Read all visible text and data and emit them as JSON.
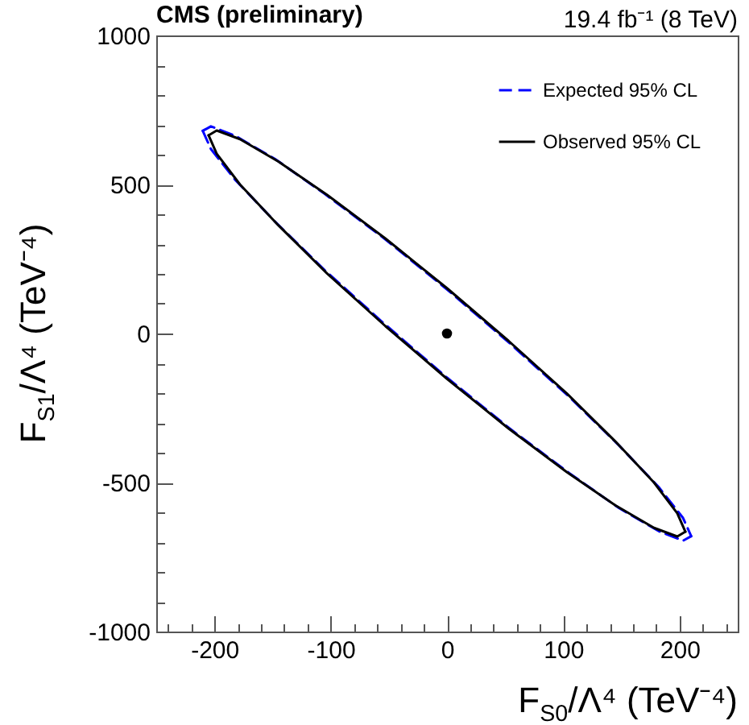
{
  "chart_data": {
    "type": "line",
    "title": "CMS (preliminary)",
    "subtitle": "19.4 fb⁻¹ (8 TeV)",
    "xlabel": "F$_{S0}$/Λ⁴ (TeV⁻⁴)",
    "ylabel": "F$_{S1}$/Λ⁴ (TeV⁻⁴)",
    "xlim": [
      -250,
      250
    ],
    "ylim": [
      -1000,
      1000
    ],
    "xticks": [
      {
        "value": -240,
        "label": null
      },
      {
        "value": -220,
        "label": null
      },
      -200,
      {
        "value": -180,
        "label": null
      },
      {
        "value": -160,
        "label": null
      },
      {
        "value": -140,
        "label": null
      },
      {
        "value": -120,
        "label": null
      },
      -100,
      {
        "value": -80,
        "label": null
      },
      {
        "value": -60,
        "label": null
      },
      {
        "value": -40,
        "label": null
      },
      {
        "value": -20,
        "label": null
      },
      0,
      {
        "value": 20,
        "label": null
      },
      {
        "value": 40,
        "label": null
      },
      {
        "value": 60,
        "label": null
      },
      {
        "value": 80,
        "label": null
      },
      100,
      {
        "value": 120,
        "label": null
      },
      {
        "value": 140,
        "label": null
      },
      {
        "value": 160,
        "label": null
      },
      {
        "value": 180,
        "label": null
      },
      200,
      {
        "value": 220,
        "label": null
      },
      {
        "value": 240,
        "label": null
      }
    ],
    "yticks": [
      -1000,
      {
        "value": -900,
        "label": null
      },
      {
        "value": -800,
        "label": null
      },
      {
        "value": -700,
        "label": null
      },
      {
        "value": -600,
        "label": null
      },
      -500,
      {
        "value": -400,
        "label": null
      },
      {
        "value": -300,
        "label": null
      },
      {
        "value": -200,
        "label": null
      },
      {
        "value": -100,
        "label": null
      },
      0,
      {
        "value": 100,
        "label": null
      },
      {
        "value": 200,
        "label": null
      },
      {
        "value": 300,
        "label": null
      },
      {
        "value": 400,
        "label": null
      },
      500,
      {
        "value": 600,
        "label": null
      },
      {
        "value": 700,
        "label": null
      },
      {
        "value": 800,
        "label": null
      },
      {
        "value": 900,
        "label": null
      },
      1000
    ],
    "legend": "top right",
    "series": [
      {
        "name": "Expected 95% CL",
        "color": "#0000ff",
        "line_style": "dashed",
        "x": [
          -210,
          -203,
          -182,
          -148,
          -105,
          -54,
          0,
          54,
          105,
          148,
          182,
          203,
          210
        ],
        "values": [
          680,
          695,
          663,
          586,
          468,
          319,
          148,
          -33,
          -212,
          -376,
          -515,
          -619,
          -680
        ]
      },
      {
        "color": "#0000ff",
        "line_style": "dashed",
        "x": [
          -210,
          -203,
          -182,
          -148,
          -105,
          -54,
          0,
          54,
          105,
          148,
          182,
          203,
          210
        ],
        "values": [
          680,
          619,
          515,
          376,
          212,
          33,
          -148,
          -319,
          -468,
          -586,
          -663,
          -695,
          -680
        ]
      },
      {
        "name": "Observed 95% CL",
        "color": "#000000",
        "line_style": "solid",
        "x": [
          -205,
          -198,
          -178,
          -145,
          -103,
          -53,
          0,
          53,
          103,
          145,
          178,
          198,
          205
        ],
        "values": [
          665,
          681,
          652,
          577,
          465,
          319,
          152,
          -25,
          -201,
          -363,
          -500,
          -603,
          -665
        ]
      },
      {
        "color": "#000000",
        "line_style": "solid",
        "x": [
          -205,
          -198,
          -178,
          -145,
          -103,
          -53,
          0,
          53,
          103,
          145,
          178,
          198,
          205
        ],
        "values": [
          665,
          603,
          500,
          363,
          201,
          25,
          -152,
          -319,
          -465,
          -577,
          -652,
          -681,
          -665
        ]
      },
      {
        "type": "scatter",
        "color": "#000000",
        "marker": "circle",
        "x": [
          0
        ],
        "values": [
          0
        ]
      }
    ]
  }
}
